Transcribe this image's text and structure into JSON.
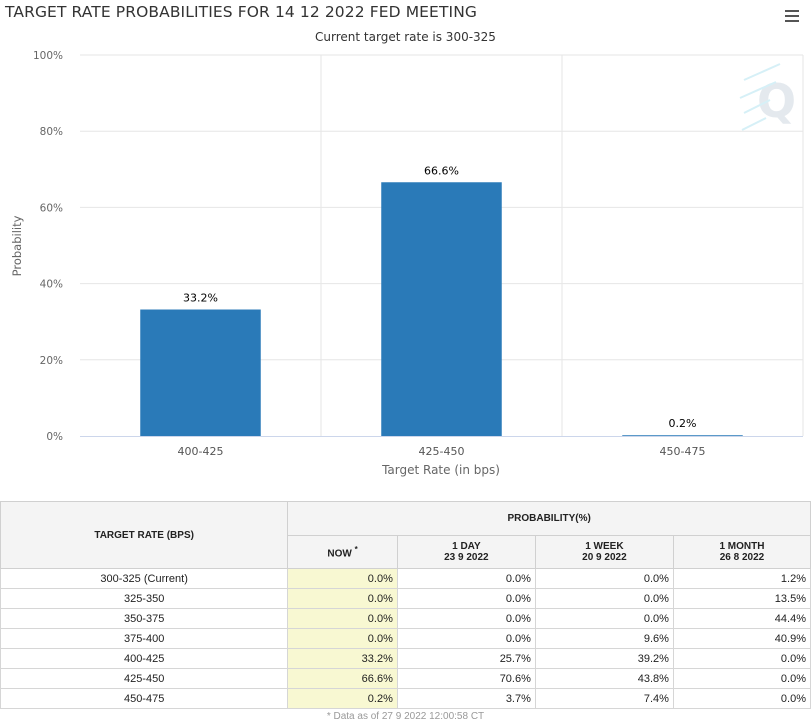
{
  "chart_data": {
    "type": "bar",
    "title": "TARGET RATE PROBABILITIES FOR 14 12 2022 FED MEETING",
    "subtitle": "Current target rate is 300-325",
    "xlabel": "Target Rate (in bps)",
    "ylabel": "Probability",
    "categories": [
      "400-425",
      "425-450",
      "450-475"
    ],
    "values": [
      33.2,
      66.6,
      0.2
    ],
    "data_labels": [
      "33.2%",
      "66.6%",
      "0.2%"
    ],
    "ylim": [
      0,
      100
    ],
    "yticks": [
      "0%",
      "20%",
      "40%",
      "60%",
      "80%",
      "100%"
    ],
    "grid": true,
    "legend": "none",
    "bar_color": "#2a7ab8"
  },
  "table": {
    "header_left": "TARGET RATE (BPS)",
    "header_group": "PROBABILITY(%)",
    "col_now": "NOW",
    "col_now_mark": "*",
    "col_1day": "1 DAY",
    "col_1day_date": "23 9 2022",
    "col_1week": "1 WEEK",
    "col_1week_date": "20 9 2022",
    "col_1month": "1 MONTH",
    "col_1month_date": "26 8 2022",
    "rows": [
      {
        "rate": "300-325 (Current)",
        "now": "0.0%",
        "day": "0.0%",
        "week": "0.0%",
        "month": "1.2%"
      },
      {
        "rate": "325-350",
        "now": "0.0%",
        "day": "0.0%",
        "week": "0.0%",
        "month": "13.5%"
      },
      {
        "rate": "350-375",
        "now": "0.0%",
        "day": "0.0%",
        "week": "0.0%",
        "month": "44.4%"
      },
      {
        "rate": "375-400",
        "now": "0.0%",
        "day": "0.0%",
        "week": "9.6%",
        "month": "40.9%"
      },
      {
        "rate": "400-425",
        "now": "33.2%",
        "day": "25.7%",
        "week": "39.2%",
        "month": "0.0%"
      },
      {
        "rate": "425-450",
        "now": "66.6%",
        "day": "70.6%",
        "week": "43.8%",
        "month": "0.0%"
      },
      {
        "rate": "450-475",
        "now": "0.2%",
        "day": "3.7%",
        "week": "7.4%",
        "month": "0.0%"
      }
    ]
  },
  "footnote": "* Data as of 27 9 2022 12:00:58 CT",
  "icons": {
    "menu": "hamburger-menu-icon",
    "logo": "q-logo-icon"
  }
}
